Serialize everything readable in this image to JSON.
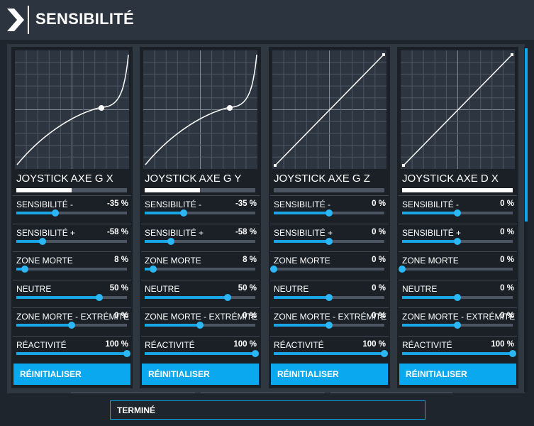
{
  "window": {
    "title": "SENSIBILITÉ"
  },
  "axes": [
    {
      "name": "JOYSTICK AXE G X",
      "axis_level": 0.5,
      "curve": "custom",
      "settings": [
        {
          "label": "SENSIBILITÉ -",
          "value": "-35 %",
          "level": 0.35
        },
        {
          "label": "SENSIBILITÉ +",
          "value": "-58 %",
          "level": 0.24
        },
        {
          "label": "ZONE MORTE",
          "value": "8 %",
          "level": 0.08
        },
        {
          "label": "NEUTRE",
          "value": "50 %",
          "level": 0.75
        },
        {
          "label": "ZONE MORTE - EXTRÉMITÉ",
          "value": "0 %",
          "level": 0.5
        },
        {
          "label": "RÉACTIVITÉ",
          "value": "100 %",
          "level": 1.0
        }
      ],
      "reset_label": "RÉINITIALISER"
    },
    {
      "name": "JOYSTICK AXE G Y",
      "axis_level": 0.5,
      "curve": "custom",
      "settings": [
        {
          "label": "SENSIBILITÉ -",
          "value": "-35 %",
          "level": 0.35
        },
        {
          "label": "SENSIBILITÉ +",
          "value": "-58 %",
          "level": 0.24
        },
        {
          "label": "ZONE MORTE",
          "value": "8 %",
          "level": 0.08
        },
        {
          "label": "NEUTRE",
          "value": "50 %",
          "level": 0.75
        },
        {
          "label": "ZONE MORTE - EXTRÉMITÉ",
          "value": "0 %",
          "level": 0.5
        },
        {
          "label": "RÉACTIVITÉ",
          "value": "100 %",
          "level": 1.0
        }
      ],
      "reset_label": "RÉINITIALISER"
    },
    {
      "name": "JOYSTICK AXE G Z",
      "axis_level": 0.0,
      "curve": "linear",
      "settings": [
        {
          "label": "SENSIBILITÉ -",
          "value": "0 %",
          "level": 0.5
        },
        {
          "label": "SENSIBILITÉ +",
          "value": "0 %",
          "level": 0.5
        },
        {
          "label": "ZONE MORTE",
          "value": "0 %",
          "level": 0.0
        },
        {
          "label": "NEUTRE",
          "value": "0 %",
          "level": 0.5
        },
        {
          "label": "ZONE MORTE - EXTRÉMITÉ",
          "value": "0 %",
          "level": 0.5
        },
        {
          "label": "RÉACTIVITÉ",
          "value": "100 %",
          "level": 1.0
        }
      ],
      "reset_label": "RÉINITIALISER"
    },
    {
      "name": "JOYSTICK AXE D X",
      "axis_level": 1.0,
      "curve": "linear",
      "settings": [
        {
          "label": "SENSIBILITÉ -",
          "value": "0 %",
          "level": 0.5
        },
        {
          "label": "SENSIBILITÉ +",
          "value": "0 %",
          "level": 0.5
        },
        {
          "label": "ZONE MORTE",
          "value": "0 %",
          "level": 0.0
        },
        {
          "label": "NEUTRE",
          "value": "0 %",
          "level": 0.5
        },
        {
          "label": "ZONE MORTE - EXTRÉMITÉ",
          "value": "0 %",
          "level": 0.5
        },
        {
          "label": "RÉACTIVITÉ",
          "value": "100 %",
          "level": 1.0
        }
      ],
      "reset_label": "RÉINITIALISER"
    }
  ],
  "done_label": "TERMINÉ",
  "colors": {
    "accent": "#0aa8ee",
    "panel": "#1b2027",
    "graph_bg": "#2d3540",
    "titlebar": "#2c343f"
  }
}
